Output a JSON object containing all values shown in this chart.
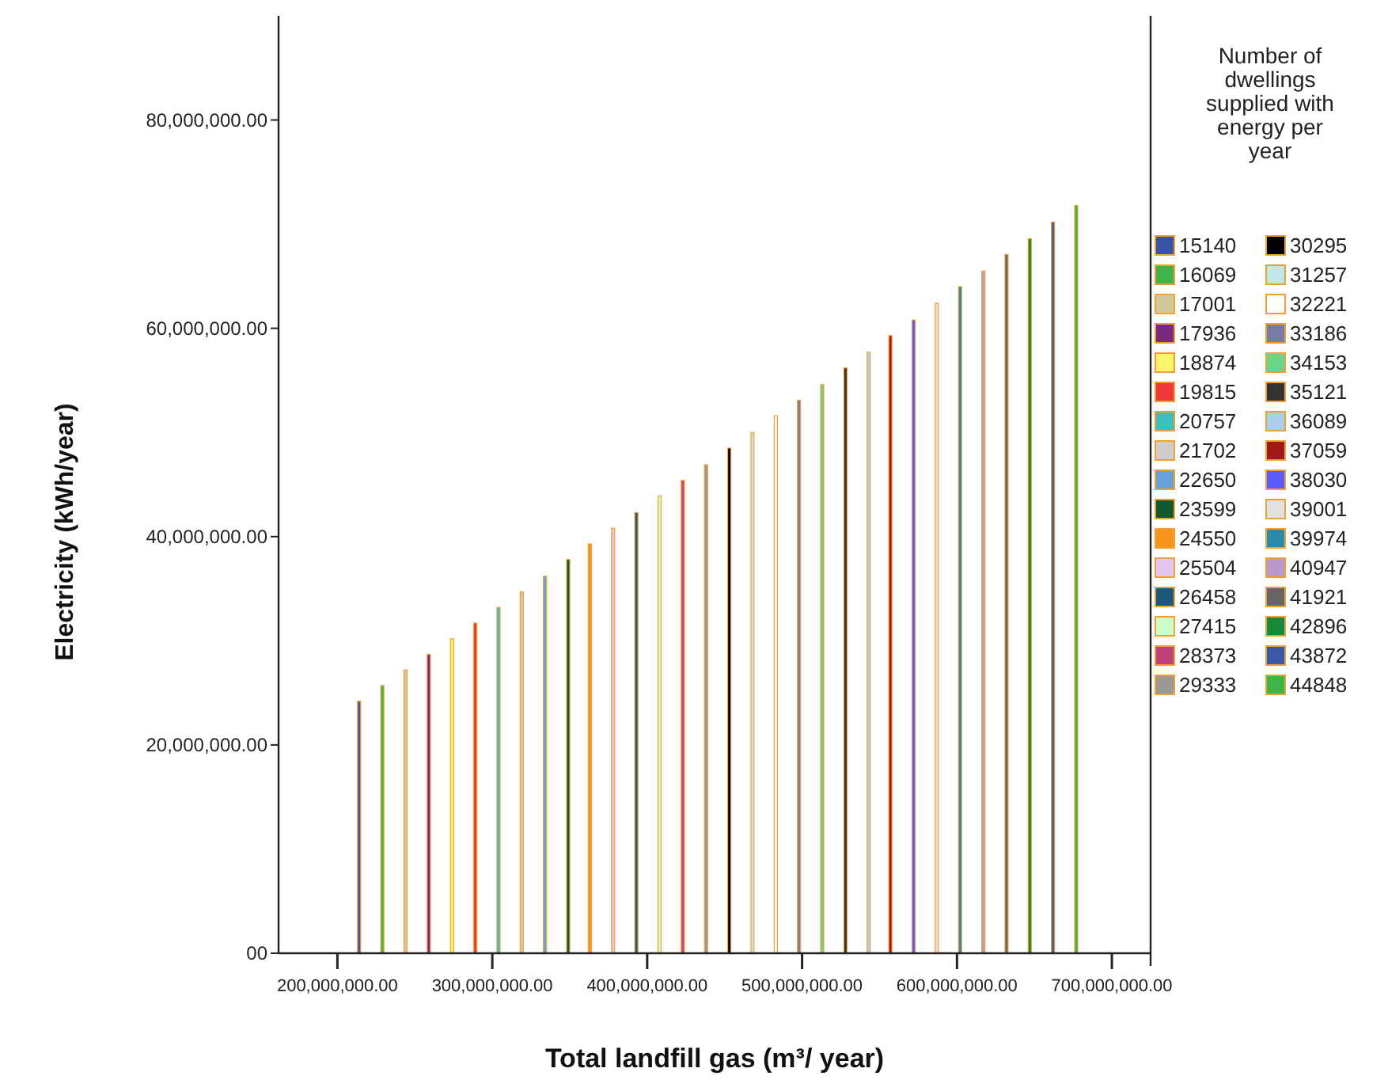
{
  "chart_data": {
    "type": "bar",
    "xlabel": "Total landfill gas (m³/ year)",
    "ylabel": "Electricity (kWh/year)",
    "legend_title": "Number of dwellings supplied with energy per year",
    "legend": "right",
    "grid": false,
    "xlim": [
      162000000,
      725000000
    ],
    "ylim": [
      0,
      90000000
    ],
    "xticks": [
      {
        "value": 200000000,
        "label": "200,000,000.00"
      },
      {
        "value": 300000000,
        "label": "300,000,000.00"
      },
      {
        "value": 400000000,
        "label": "400,000,000.00"
      },
      {
        "value": 500000000,
        "label": "500,000,000.00"
      },
      {
        "value": 600000000,
        "label": "600,000,000.00"
      },
      {
        "value": 700000000,
        "label": "700,000,000.00"
      }
    ],
    "yticks": [
      {
        "value": 0,
        "label": "00"
      },
      {
        "value": 20000000,
        "label": "20,000,000.00"
      },
      {
        "value": 40000000,
        "label": "40,000,000.00"
      },
      {
        "value": 60000000,
        "label": "60,000,000.00"
      },
      {
        "value": 80000000,
        "label": "80,000,000.00"
      }
    ],
    "series": [
      {
        "name": "15140",
        "color": "#3a55a8",
        "x": [
          214000000
        ],
        "values": [
          24200000
        ]
      },
      {
        "name": "16069",
        "color": "#3cb54a",
        "x": [
          229000000
        ],
        "values": [
          25700000
        ]
      },
      {
        "name": "17001",
        "color": "#d2c99a",
        "x": [
          244000000
        ],
        "values": [
          27200000
        ]
      },
      {
        "name": "17936",
        "color": "#7a2a7e",
        "x": [
          259000000
        ],
        "values": [
          28700000
        ]
      },
      {
        "name": "18874",
        "color": "#fff36a",
        "x": [
          274000000
        ],
        "values": [
          30200000
        ]
      },
      {
        "name": "19815",
        "color": "#ee3a3a",
        "x": [
          289000000
        ],
        "values": [
          31700000
        ]
      },
      {
        "name": "20757",
        "color": "#3cbfbf",
        "x": [
          304000000
        ],
        "values": [
          33200000
        ]
      },
      {
        "name": "21702",
        "color": "#cccccc",
        "x": [
          319000000
        ],
        "values": [
          34700000
        ]
      },
      {
        "name": "22650",
        "color": "#6aa0d8",
        "x": [
          334000000
        ],
        "values": [
          36200000
        ]
      },
      {
        "name": "23599",
        "color": "#0e5a2e",
        "x": [
          349000000
        ],
        "values": [
          37800000
        ]
      },
      {
        "name": "24550",
        "color": "#f7941d",
        "x": [
          363000000
        ],
        "values": [
          39300000
        ]
      },
      {
        "name": "25504",
        "color": "#e2c6f0",
        "x": [
          378000000
        ],
        "values": [
          40800000
        ]
      },
      {
        "name": "26458",
        "color": "#1a5a78",
        "x": [
          393000000
        ],
        "values": [
          42300000
        ]
      },
      {
        "name": "27415",
        "color": "#ccffcc",
        "x": [
          408000000
        ],
        "values": [
          43900000
        ]
      },
      {
        "name": "28373",
        "color": "#c0407a",
        "x": [
          423000000
        ],
        "values": [
          45400000
        ]
      },
      {
        "name": "29333",
        "color": "#999999",
        "x": [
          438000000
        ],
        "values": [
          46900000
        ]
      },
      {
        "name": "30295",
        "color": "#000000",
        "x": [
          453000000
        ],
        "values": [
          48500000
        ]
      },
      {
        "name": "31257",
        "color": "#bfe8e8",
        "x": [
          468000000
        ],
        "values": [
          50000000
        ]
      },
      {
        "name": "32221",
        "color": "#ffffff",
        "x": [
          483000000
        ],
        "values": [
          51600000
        ]
      },
      {
        "name": "33186",
        "color": "#7a7aa8",
        "x": [
          498000000
        ],
        "values": [
          53100000
        ]
      },
      {
        "name": "34153",
        "color": "#6ad68a",
        "x": [
          513000000
        ],
        "values": [
          54600000
        ]
      },
      {
        "name": "35121",
        "color": "#333333",
        "x": [
          528000000
        ],
        "values": [
          56200000
        ]
      },
      {
        "name": "36089",
        "color": "#a8d0ec",
        "x": [
          543000000
        ],
        "values": [
          57700000
        ]
      },
      {
        "name": "37059",
        "color": "#a01818",
        "x": [
          557000000
        ],
        "values": [
          59300000
        ]
      },
      {
        "name": "38030",
        "color": "#5a5aff",
        "x": [
          572000000
        ],
        "values": [
          60800000
        ]
      },
      {
        "name": "39001",
        "color": "#e0e0e0",
        "x": [
          587000000
        ],
        "values": [
          62400000
        ]
      },
      {
        "name": "39974",
        "color": "#2a8aaa",
        "x": [
          602000000
        ],
        "values": [
          64000000
        ]
      },
      {
        "name": "40947",
        "color": "#b898c8",
        "x": [
          617000000
        ],
        "values": [
          65500000
        ]
      },
      {
        "name": "41921",
        "color": "#666666",
        "x": [
          632000000
        ],
        "values": [
          67100000
        ]
      },
      {
        "name": "42896",
        "color": "#168a3a",
        "x": [
          647000000
        ],
        "values": [
          68600000
        ]
      },
      {
        "name": "43872",
        "color": "#3a5aa8",
        "x": [
          662000000
        ],
        "values": [
          70200000
        ]
      },
      {
        "name": "44848",
        "color": "#3cb54a",
        "x": [
          677000000
        ],
        "values": [
          71800000
        ]
      }
    ]
  }
}
